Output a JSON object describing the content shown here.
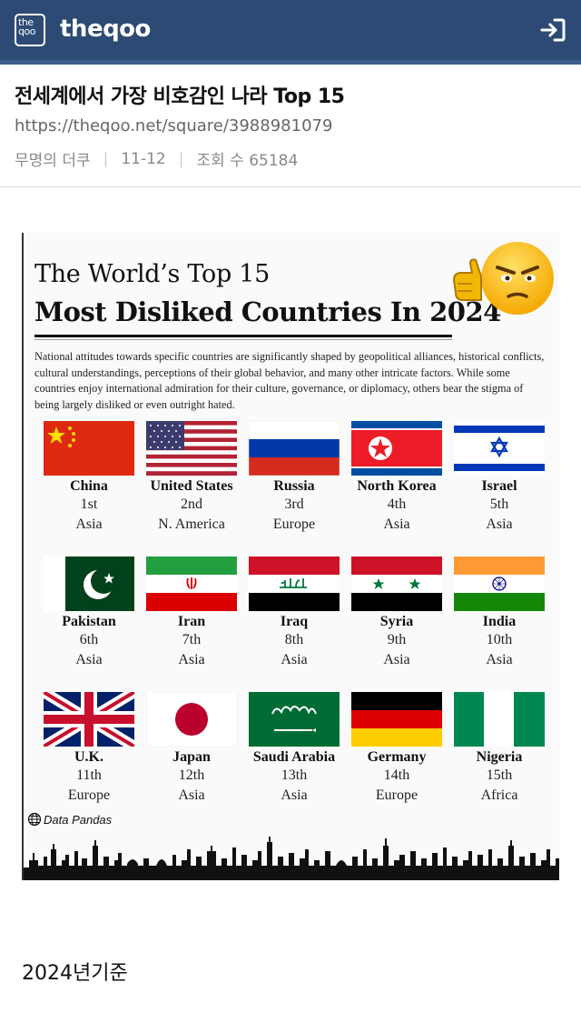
{
  "header": {
    "logo_lines": [
      "the",
      "qoo"
    ],
    "brand": "theqoo",
    "login_icon": "login-icon"
  },
  "post": {
    "title": "전세계에서 가장 비호감인 나라 Top 15",
    "url": "https://theqoo.net/square/3988981079",
    "author": "무명의 더쿠",
    "date": "11-12",
    "views_label": "조회 수 65184"
  },
  "infographic": {
    "title_line1": "The World’s Top 15",
    "title_line2": "Most Disliked Countries In 2024",
    "description": "National attitudes towards specific countries are significantly shaped by geopolitical alliances, historical conflicts, cultural understandings, perceptions of their global behavior, and many other intricate factors. While some countries enjoy international admiration for their culture, governance, or diplomacy, others bear the stigma of being largely disliked or even outright hated.",
    "countries": [
      {
        "name": "China",
        "rank": "1st",
        "region": "Asia",
        "flag": "china-flag"
      },
      {
        "name": "United States",
        "rank": "2nd",
        "region": "N. America",
        "flag": "usa-flag"
      },
      {
        "name": "Russia",
        "rank": "3rd",
        "region": "Europe",
        "flag": "russia-flag"
      },
      {
        "name": "North Korea",
        "rank": "4th",
        "region": "Asia",
        "flag": "north-korea-flag"
      },
      {
        "name": "Israel",
        "rank": "5th",
        "region": "Asia",
        "flag": "israel-flag"
      },
      {
        "name": "Pakistan",
        "rank": "6th",
        "region": "Asia",
        "flag": "pakistan-flag"
      },
      {
        "name": "Iran",
        "rank": "7th",
        "region": "Asia",
        "flag": "iran-flag"
      },
      {
        "name": "Iraq",
        "rank": "8th",
        "region": "Asia",
        "flag": "iraq-flag"
      },
      {
        "name": "Syria",
        "rank": "9th",
        "region": "Asia",
        "flag": "syria-flag"
      },
      {
        "name": "India",
        "rank": "10th",
        "region": "Asia",
        "flag": "india-flag"
      },
      {
        "name": "U.K.",
        "rank": "11th",
        "region": "Europe",
        "flag": "uk-flag"
      },
      {
        "name": "Japan",
        "rank": "12th",
        "region": "Asia",
        "flag": "japan-flag"
      },
      {
        "name": "Saudi Arabia",
        "rank": "13th",
        "region": "Asia",
        "flag": "saudi-arabia-flag"
      },
      {
        "name": "Germany",
        "rank": "14th",
        "region": "Europe",
        "flag": "germany-flag"
      },
      {
        "name": "Nigeria",
        "rank": "15th",
        "region": "Africa",
        "flag": "nigeria-flag"
      }
    ],
    "source": "Data Pandas"
  },
  "footer_note": "2024년기준",
  "colors": {
    "header_bg": "#2c4a73",
    "text_muted": "#888888"
  }
}
